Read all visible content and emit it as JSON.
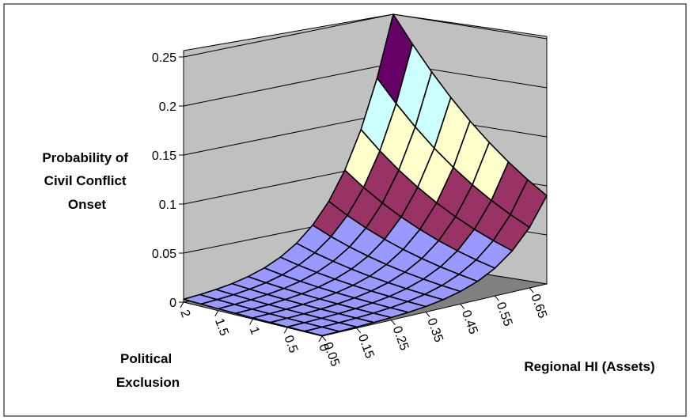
{
  "chart_data": {
    "type": "surface",
    "zlabel": [
      "Probability of",
      "Civil Conflict",
      "Onset"
    ],
    "ylabel": [
      "Political",
      "Exclusion"
    ],
    "xlabel": "Regional HI (Assets)",
    "z_ticks": [
      "0",
      "0.05",
      "0.1",
      "0.15",
      "0.2",
      "0.25"
    ],
    "zlim": [
      0,
      0.25
    ],
    "x_ticks": [
      "0.05",
      "0.15",
      "0.25",
      "0.35",
      "0.45",
      "0.55",
      "0.65"
    ],
    "x_grid": [
      0.05,
      0.1,
      0.15,
      0.2,
      0.25,
      0.3,
      0.35,
      0.4,
      0.45,
      0.5,
      0.55,
      0.6,
      0.65,
      0.7
    ],
    "y_ticks": [
      "0",
      "0.5",
      "1",
      "1.5",
      "2"
    ],
    "y_grid": [
      0,
      0.25,
      0.5,
      0.75,
      1,
      1.25,
      1.5,
      1.75,
      2
    ],
    "z_corners": {
      "x_min_y_min": 0.0005,
      "x_max_y_min": 0.09,
      "x_min_y_max": 0.003,
      "x_max_y_max": 0.25
    },
    "color_bands": [
      {
        "range": [
          0,
          0.05
        ],
        "color": "#9999ff"
      },
      {
        "range": [
          0.05,
          0.1
        ],
        "color": "#993366"
      },
      {
        "range": [
          0.1,
          0.15
        ],
        "color": "#ffffcc"
      },
      {
        "range": [
          0.15,
          0.2
        ],
        "color": "#ccffff"
      },
      {
        "range": [
          0.2,
          0.25
        ],
        "color": "#660066"
      }
    ],
    "wall_color": "#c0c0c0",
    "floor_color": "#808080",
    "grid": true
  }
}
